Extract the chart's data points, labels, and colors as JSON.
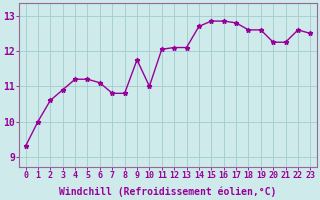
{
  "x": [
    0,
    1,
    2,
    3,
    4,
    5,
    6,
    7,
    8,
    9,
    10,
    11,
    12,
    13,
    14,
    15,
    16,
    17,
    18,
    19,
    20,
    21,
    22,
    23
  ],
  "y": [
    9.3,
    10.0,
    10.6,
    10.9,
    11.2,
    11.2,
    11.1,
    10.8,
    10.8,
    11.75,
    11.0,
    12.05,
    12.1,
    12.1,
    12.7,
    12.85,
    12.85,
    12.8,
    12.6,
    12.6,
    12.25,
    12.25,
    12.6,
    12.5
  ],
  "line_color": "#990099",
  "marker": "*",
  "marker_size": 3.5,
  "xlabel": "Windchill (Refroidissement éolien,°C)",
  "xlabel_fontsize": 7,
  "ylabel_ticks": [
    9,
    10,
    11,
    12,
    13
  ],
  "xtick_labels": [
    "0",
    "1",
    "2",
    "3",
    "4",
    "5",
    "6",
    "7",
    "8",
    "9",
    "10",
    "11",
    "12",
    "13",
    "14",
    "15",
    "16",
    "17",
    "18",
    "19",
    "20",
    "21",
    "22",
    "23"
  ],
  "ylim": [
    8.7,
    13.35
  ],
  "xlim": [
    -0.5,
    23.5
  ],
  "background_color": "#ceeaea",
  "grid_color": "#a0cccc",
  "tick_fontsize": 6,
  "tick_color": "#990099",
  "line_width": 1.0,
  "spine_color": "#996699"
}
